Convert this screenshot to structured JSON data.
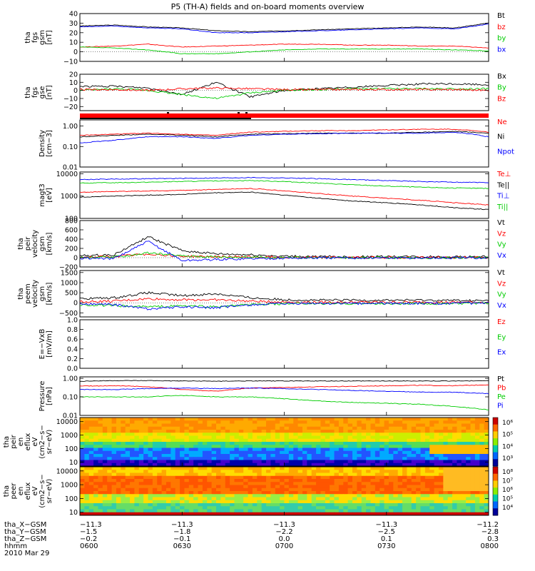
{
  "title": "P5 (TH-A) fields and on-board moments overview",
  "chart_data": [
    {
      "type": "line",
      "panel": "fgs_gsm",
      "ylabel": [
        "tha",
        "fgs",
        "gsm",
        "[nT]"
      ],
      "ylim": [
        -10,
        40
      ],
      "yticks": [
        "40",
        "30",
        "20",
        "10",
        "0",
        "−10"
      ],
      "yticks_values": [
        40,
        30,
        20,
        10,
        0,
        -10
      ],
      "x": [
        0,
        10,
        20,
        30,
        40,
        50,
        60,
        70,
        80,
        90,
        100,
        110,
        120
      ],
      "series": [
        {
          "name": "Bt",
          "color": "#000000",
          "values": [
            27,
            28,
            26,
            25,
            22,
            21,
            22,
            23,
            24,
            25,
            26,
            25,
            30
          ]
        },
        {
          "name": "bz",
          "color": "#ff0000",
          "values": [
            5,
            6,
            8,
            5,
            6,
            7,
            8,
            8,
            7,
            7,
            6,
            6,
            4
          ]
        },
        {
          "name": "by",
          "color": "#00cc00",
          "values": [
            5,
            4,
            2,
            -2,
            -2,
            0,
            2,
            3,
            3,
            3,
            3,
            2,
            1
          ]
        },
        {
          "name": "bx",
          "color": "#0000ff",
          "values": [
            26,
            27,
            25,
            24,
            20,
            20,
            21,
            22,
            23,
            24,
            25,
            24,
            29
          ]
        }
      ]
    },
    {
      "type": "line",
      "panel": "fgs_gse",
      "ylabel": [
        "tha",
        "fgs",
        "gse",
        "[nT]"
      ],
      "ylim": [
        -25,
        20
      ],
      "yticks": [
        "20",
        "10",
        "0",
        "−10",
        "−20"
      ],
      "yticks_values": [
        20,
        10,
        0,
        -10,
        -20
      ],
      "x": [
        0,
        10,
        20,
        30,
        40,
        50,
        60,
        70,
        80,
        90,
        100,
        110,
        120
      ],
      "series": [
        {
          "name": "Bx",
          "color": "#000000",
          "values": [
            5,
            5,
            3,
            -5,
            10,
            -8,
            0,
            2,
            4,
            6,
            8,
            8,
            7
          ]
        },
        {
          "name": "By",
          "color": "#00cc00",
          "values": [
            0,
            2,
            0,
            -5,
            -10,
            -3,
            0,
            1,
            2,
            2,
            2,
            2,
            2
          ]
        },
        {
          "name": "Bz",
          "color": "#ff0000",
          "values": [
            1,
            1,
            0,
            2,
            3,
            2,
            1,
            1,
            1,
            1,
            1,
            1,
            0
          ]
        }
      ]
    },
    {
      "type": "line",
      "panel": "density",
      "ylabel": [
        "Density",
        "[cm−3]"
      ],
      "ylim": [
        0.01,
        2
      ],
      "log": true,
      "yticks": [
        "1.00",
        "0.10",
        "0.01"
      ],
      "yticks_values": [
        1,
        0.1,
        0.01
      ],
      "x": [
        0,
        10,
        20,
        30,
        40,
        50,
        60,
        70,
        80,
        90,
        100,
        110,
        120
      ],
      "series": [
        {
          "name": "Ne",
          "color": "#ff0000",
          "values": [
            0.35,
            0.4,
            0.45,
            0.4,
            0.35,
            0.5,
            0.55,
            0.6,
            0.6,
            0.65,
            0.7,
            0.7,
            0.5
          ]
        },
        {
          "name": "Ni",
          "color": "#000000",
          "values": [
            0.3,
            0.35,
            0.4,
            0.35,
            0.3,
            0.4,
            0.42,
            0.45,
            0.45,
            0.45,
            0.5,
            0.55,
            0.45
          ]
        },
        {
          "name": "Npot",
          "color": "#0000ff",
          "values": [
            0.15,
            0.2,
            0.3,
            0.3,
            0.25,
            0.35,
            0.4,
            0.42,
            0.45,
            0.45,
            0.45,
            0.5,
            0.3
          ]
        }
      ]
    },
    {
      "type": "line",
      "panel": "temperature",
      "ylabel": [
        "magt3",
        "[eV]"
      ],
      "ylim": [
        100,
        12000
      ],
      "log": true,
      "yticks": [
        "10000",
        "1000",
        "100"
      ],
      "yticks_values": [
        10000,
        1000,
        100
      ],
      "x": [
        0,
        10,
        20,
        30,
        40,
        50,
        60,
        70,
        80,
        90,
        100,
        110,
        120
      ],
      "series": [
        {
          "name": "Te⊥",
          "color": "#ff0000",
          "values": [
            1500,
            1600,
            1700,
            1800,
            2000,
            2200,
            1700,
            1300,
            1000,
            800,
            650,
            500,
            400
          ]
        },
        {
          "name": "Te||",
          "color": "#000000",
          "values": [
            900,
            1000,
            1100,
            1200,
            1400,
            1500,
            1100,
            800,
            600,
            500,
            400,
            300,
            250
          ]
        },
        {
          "name": "Ti⊥",
          "color": "#0000ff",
          "values": [
            5500,
            5800,
            6000,
            6200,
            6500,
            6800,
            6500,
            6000,
            5500,
            5000,
            4500,
            4200,
            4000
          ]
        },
        {
          "name": "Ti||",
          "color": "#00cc00",
          "values": [
            3800,
            4000,
            4200,
            4500,
            4800,
            5000,
            4500,
            3800,
            3200,
            2800,
            2500,
            2300,
            2200
          ]
        }
      ]
    },
    {
      "type": "line",
      "panel": "peir_velocity",
      "ylabel": [
        "tha",
        "peir",
        "velocity",
        "gsm",
        "[km/s]"
      ],
      "ylim": [
        -200,
        800
      ],
      "yticks": [
        "800",
        "600",
        "400",
        "200",
        "0",
        "−200"
      ],
      "yticks_values": [
        800,
        600,
        400,
        200,
        0,
        -200
      ],
      "x": [
        0,
        10,
        20,
        30,
        40,
        50,
        60,
        70,
        80,
        90,
        100,
        110,
        120
      ],
      "series": [
        {
          "name": "Vt",
          "color": "#000000",
          "values": [
            40,
            60,
            450,
            150,
            80,
            60,
            30,
            20,
            20,
            20,
            20,
            20,
            20
          ]
        },
        {
          "name": "Vz",
          "color": "#ff0000",
          "values": [
            10,
            20,
            80,
            30,
            20,
            15,
            10,
            5,
            5,
            5,
            5,
            5,
            5
          ]
        },
        {
          "name": "Vy",
          "color": "#00cc00",
          "values": [
            0,
            10,
            100,
            40,
            20,
            10,
            5,
            0,
            0,
            0,
            0,
            0,
            0
          ]
        },
        {
          "name": "Vx",
          "color": "#0000ff",
          "values": [
            -10,
            -20,
            350,
            -60,
            -40,
            -20,
            -10,
            -5,
            -5,
            -5,
            -5,
            -5,
            -5
          ]
        }
      ]
    },
    {
      "type": "line",
      "panel": "peem_velocity",
      "ylabel": [
        "tha",
        "peem",
        "velocity",
        "gsm",
        "[km/s]"
      ],
      "ylim": [
        -700,
        1600
      ],
      "yticks": [
        "1500",
        "1000",
        "500",
        "0",
        "−500"
      ],
      "yticks_values": [
        1500,
        1000,
        500,
        0,
        -500
      ],
      "x": [
        0,
        10,
        20,
        30,
        40,
        50,
        60,
        70,
        80,
        90,
        100,
        110,
        120
      ],
      "series": [
        {
          "name": "Vt",
          "color": "#000000",
          "values": [
            200,
            250,
            500,
            350,
            450,
            250,
            150,
            130,
            130,
            130,
            130,
            120,
            100
          ]
        },
        {
          "name": "Vz",
          "color": "#ff0000",
          "values": [
            50,
            80,
            200,
            150,
            150,
            80,
            40,
            30,
            30,
            30,
            30,
            30,
            20
          ]
        },
        {
          "name": "Vy",
          "color": "#00cc00",
          "values": [
            -100,
            -150,
            -200,
            -150,
            -200,
            -100,
            -50,
            -40,
            -40,
            -40,
            -40,
            -40,
            -30
          ]
        },
        {
          "name": "Vx",
          "color": "#0000ff",
          "values": [
            -50,
            -100,
            -300,
            -200,
            -250,
            -100,
            -50,
            -30,
            -30,
            -30,
            -30,
            -30,
            -20
          ]
        }
      ]
    },
    {
      "type": "line",
      "panel": "efield",
      "ylabel": [
        "E=−VxB",
        "[mV/m]"
      ],
      "ylim": [
        0,
        1
      ],
      "yticks": [
        "1.0",
        "0.8",
        "0.6",
        "0.4",
        "0.2",
        "0.0"
      ],
      "yticks_values": [
        1,
        0.8,
        0.6,
        0.4,
        0.2,
        0
      ],
      "x": [],
      "series": [
        {
          "name": "Ez",
          "color": "#ff0000",
          "values": []
        },
        {
          "name": "Ey",
          "color": "#00cc00",
          "values": []
        },
        {
          "name": "Ex",
          "color": "#0000ff",
          "values": []
        }
      ]
    },
    {
      "type": "line",
      "panel": "pressure",
      "ylabel": [
        "Pressure",
        "[nPa]"
      ],
      "ylim": [
        0.01,
        1.2
      ],
      "log": true,
      "yticks": [
        "1.00",
        "0.10",
        "0.01"
      ],
      "yticks_values": [
        1,
        0.1,
        0.01
      ],
      "x": [
        0,
        10,
        20,
        30,
        40,
        50,
        60,
        70,
        80,
        90,
        100,
        110,
        120
      ],
      "series": [
        {
          "name": "Pt",
          "color": "#000000",
          "values": [
            0.7,
            0.75,
            0.75,
            0.72,
            0.7,
            0.72,
            0.72,
            0.72,
            0.72,
            0.72,
            0.72,
            0.72,
            0.75
          ]
        },
        {
          "name": "Pb",
          "color": "#ff0000",
          "values": [
            0.38,
            0.4,
            0.35,
            0.25,
            0.2,
            0.3,
            0.32,
            0.35,
            0.37,
            0.4,
            0.42,
            0.4,
            0.45
          ]
        },
        {
          "name": "Pe",
          "color": "#00cc00",
          "values": [
            0.1,
            0.1,
            0.1,
            0.12,
            0.1,
            0.1,
            0.08,
            0.06,
            0.05,
            0.045,
            0.04,
            0.03,
            0.02
          ]
        },
        {
          "name": "Pi",
          "color": "#0000ff",
          "values": [
            0.25,
            0.25,
            0.28,
            0.3,
            0.28,
            0.3,
            0.28,
            0.25,
            0.22,
            0.2,
            0.18,
            0.18,
            0.15
          ]
        }
      ]
    },
    {
      "type": "heatmap",
      "panel": "peir_spectrogram",
      "ylabel": [
        "tha",
        "peir",
        "en",
        "eflux",
        "eV",
        "(cm2−s−",
        "sr−eV)"
      ],
      "ylim": [
        5,
        20000
      ],
      "log": true,
      "yticks": [
        "10000",
        "1000",
        "100",
        "10"
      ],
      "yticks_values": [
        10000,
        1000,
        100,
        10
      ],
      "colorbar_ticks": [
        "10⁶",
        "10⁵",
        "10⁴",
        "10³"
      ],
      "colorbar_values": [
        1000000,
        100000,
        10000,
        1000
      ]
    },
    {
      "type": "heatmap",
      "panel": "peer_spectrogram",
      "ylabel": [
        "tha",
        "peer",
        "en",
        "eflux",
        "eV",
        "(cm2−s−",
        "sr−eV)"
      ],
      "ylim": [
        6,
        20000
      ],
      "log": true,
      "yticks": [
        "10000",
        "1000",
        "100",
        "10"
      ],
      "yticks_values": [
        10000,
        1000,
        100,
        10
      ],
      "colorbar_ticks": [
        "10⁸",
        "10⁷",
        "10⁶",
        "10⁵",
        "10⁴"
      ],
      "colorbar_values": [
        100000000,
        10000000,
        1000000,
        100000,
        10000
      ]
    }
  ],
  "ephemeris": {
    "labels": [
      "tha_X−GSM",
      "tha_Y−GSM",
      "tha_Z−GSM",
      "hhmm"
    ],
    "date": "2010 Mar 29",
    "rows": [
      [
        "−11.3",
        "−11.3",
        "−11.3",
        "−11.3",
        "−11.2"
      ],
      [
        "−1.5",
        "−1.8",
        "−2.2",
        "−2.5",
        "−2.8"
      ],
      [
        "−0.2",
        "−0.1",
        "0.0",
        "0.1",
        "0.3"
      ],
      [
        "0600",
        "0630",
        "0700",
        "0730",
        "0800"
      ]
    ]
  }
}
